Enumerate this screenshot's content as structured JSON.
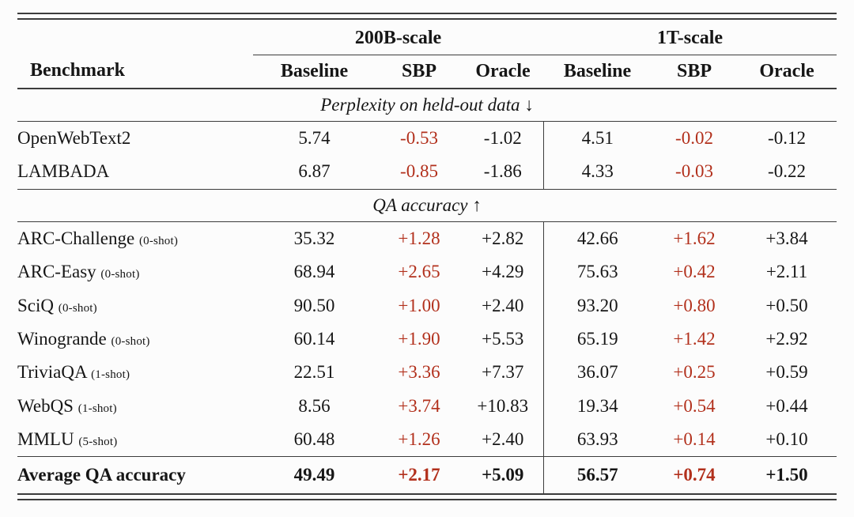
{
  "colors": {
    "background": "#fcfcfc",
    "text": "#161616",
    "rule": "#3c3c3c",
    "delta_red": "#b2301c"
  },
  "table": {
    "group_headers": [
      "200B-scale",
      "1T-scale"
    ],
    "col_headers": {
      "benchmark": "Benchmark",
      "cols": [
        "Baseline",
        "SBP",
        "Oracle",
        "Baseline",
        "SBP",
        "Oracle"
      ]
    },
    "sections": [
      {
        "label": "Perplexity on held-out data ↓",
        "rows": [
          {
            "name": "OpenWebText2",
            "values": [
              "5.74",
              "-0.53",
              "-1.02",
              "4.51",
              "-0.02",
              "-0.12"
            ]
          },
          {
            "name": "LAMBADA",
            "values": [
              "6.87",
              "-0.85",
              "-1.86",
              "4.33",
              "-0.03",
              "-0.22"
            ]
          }
        ]
      },
      {
        "label": "QA accuracy ↑",
        "rows": [
          {
            "name": "ARC-Challenge",
            "shot": "(0-shot)",
            "values": [
              "35.32",
              "+1.28",
              "+2.82",
              "42.66",
              "+1.62",
              "+3.84"
            ]
          },
          {
            "name": "ARC-Easy",
            "shot": "(0-shot)",
            "values": [
              "68.94",
              "+2.65",
              "+4.29",
              "75.63",
              "+0.42",
              "+2.11"
            ]
          },
          {
            "name": "SciQ",
            "shot": "(0-shot)",
            "values": [
              "90.50",
              "+1.00",
              "+2.40",
              "93.20",
              "+0.80",
              "+0.50"
            ]
          },
          {
            "name": "Winogrande",
            "shot": "(0-shot)",
            "values": [
              "60.14",
              "+1.90",
              "+5.53",
              "65.19",
              "+1.42",
              "+2.92"
            ]
          },
          {
            "name": "TriviaQA",
            "shot": "(1-shot)",
            "values": [
              "22.51",
              "+3.36",
              "+7.37",
              "36.07",
              "+0.25",
              "+0.59"
            ]
          },
          {
            "name": "WebQS",
            "shot": "(1-shot)",
            "values": [
              "8.56",
              "+3.74",
              "+10.83",
              "19.34",
              "+0.54",
              "+0.44"
            ]
          },
          {
            "name": "MMLU",
            "shot": "(5-shot)",
            "values": [
              "60.48",
              "+1.26",
              "+2.40",
              "63.93",
              "+0.14",
              "+0.10"
            ]
          }
        ]
      }
    ],
    "footer": {
      "name": "Average QA accuracy",
      "values": [
        "49.49",
        "+2.17",
        "+5.09",
        "56.57",
        "+0.74",
        "+1.50"
      ]
    }
  }
}
